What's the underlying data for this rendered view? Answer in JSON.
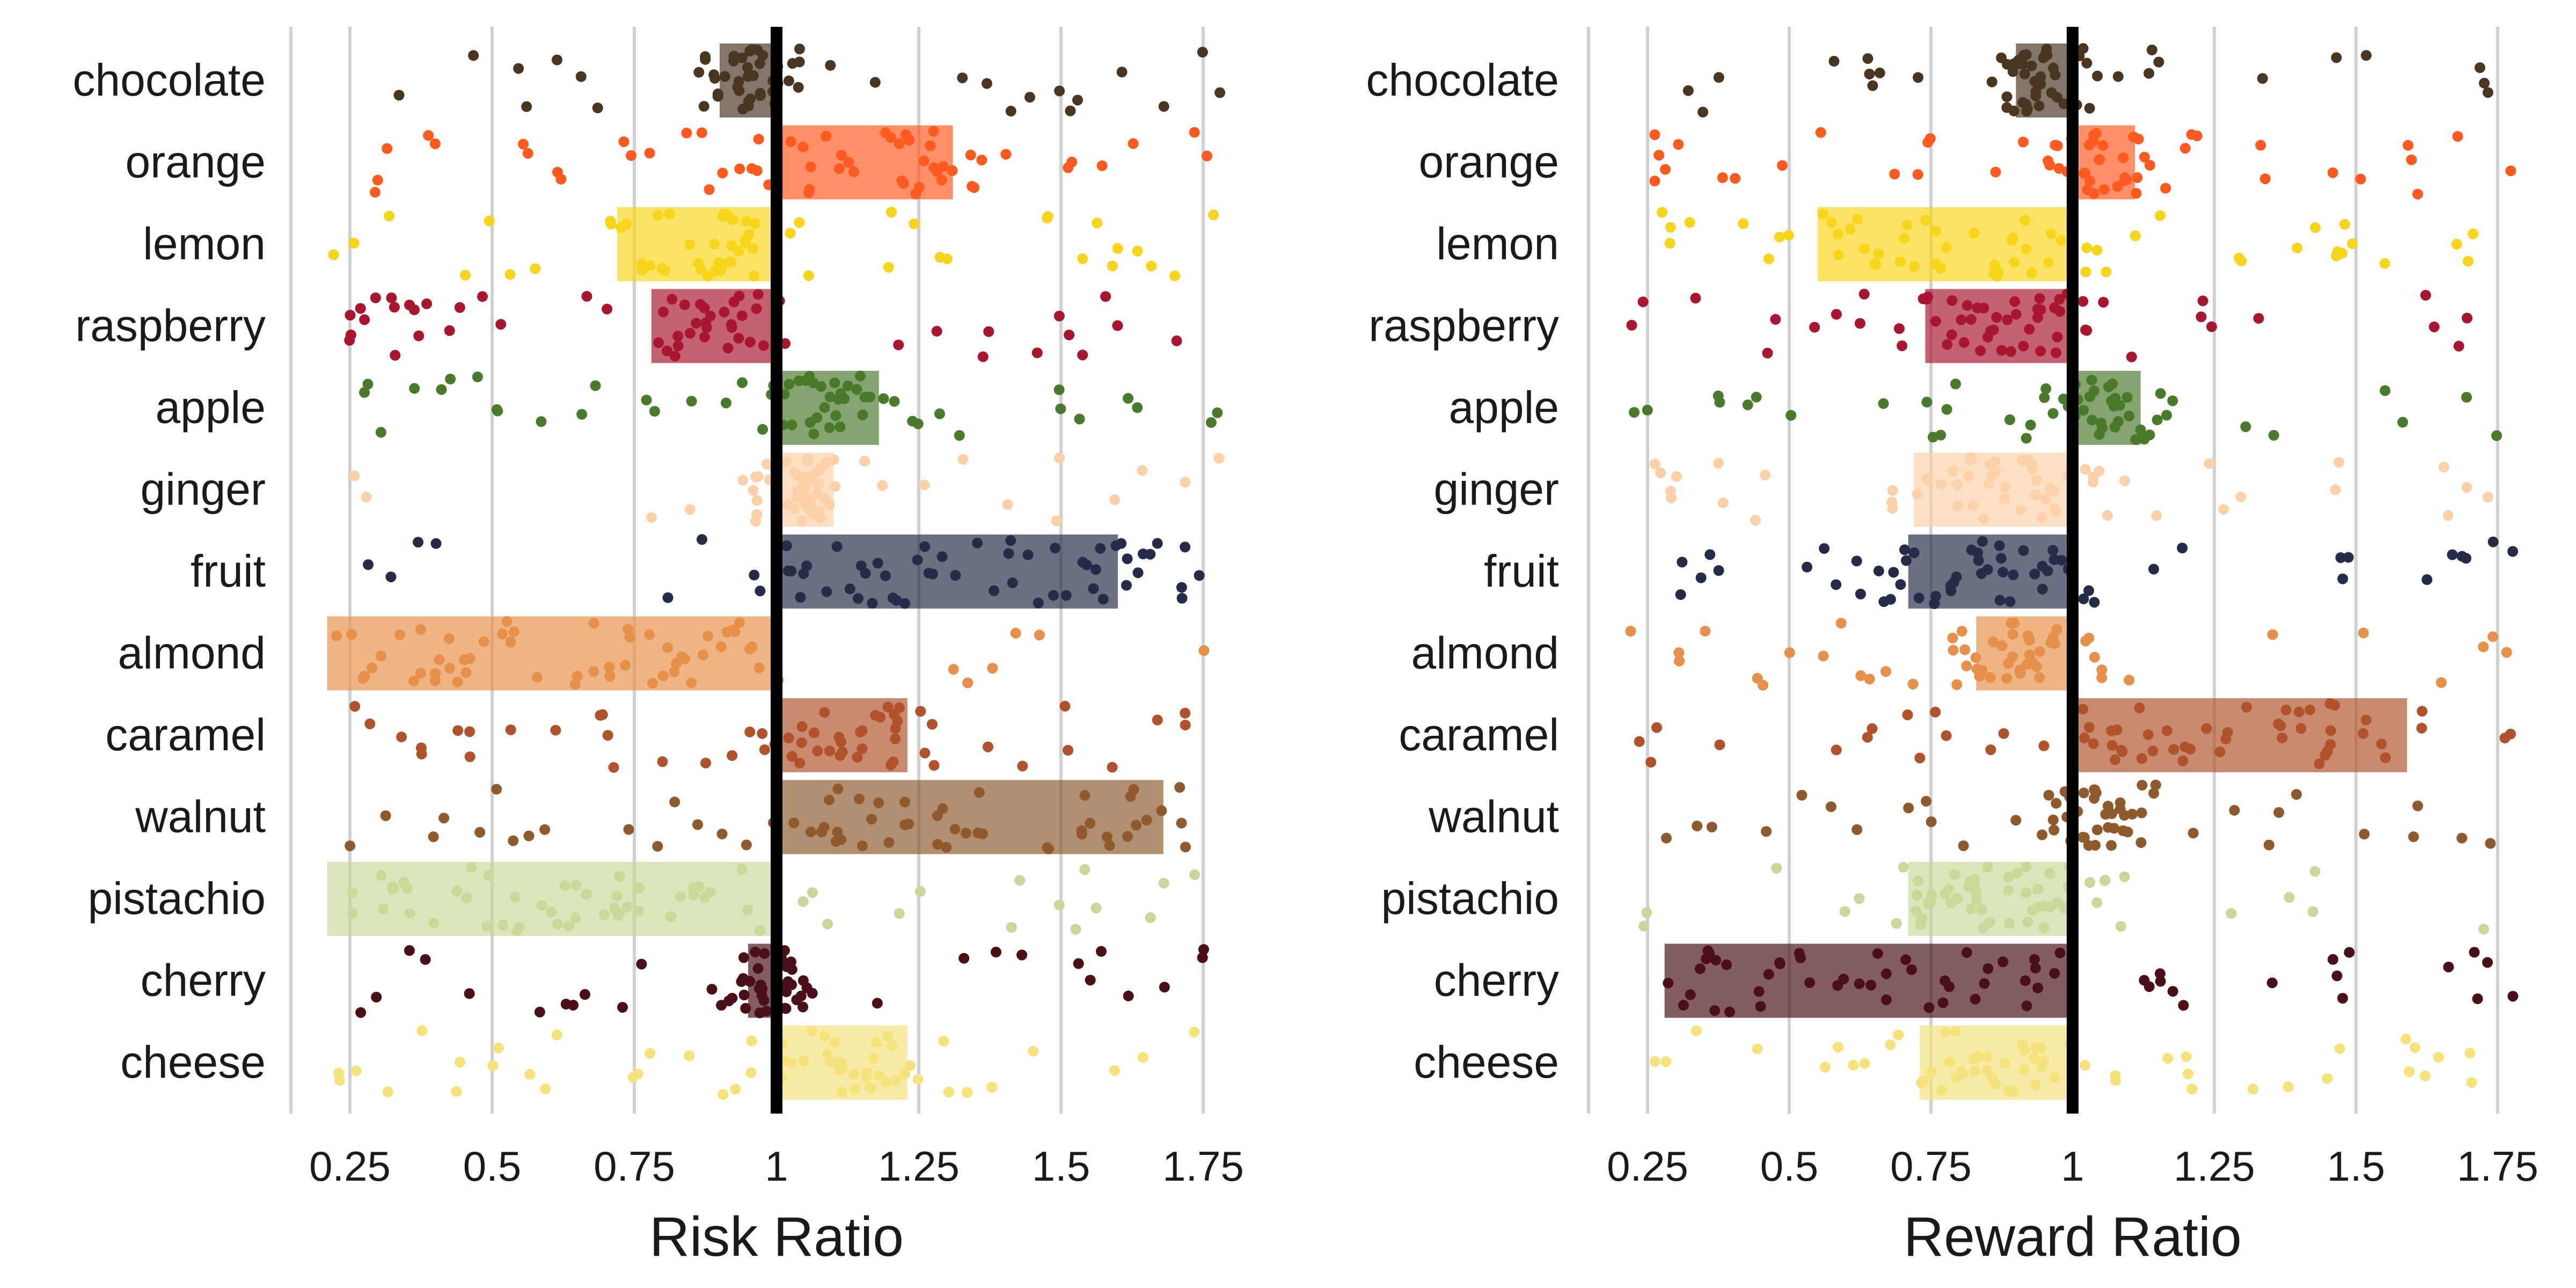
{
  "chart_data": [
    {
      "type": "bar",
      "xlabel": "Risk Ratio",
      "ylabel": "",
      "baseline": 1,
      "xlim": [
        0.0,
        1.8
      ],
      "x_ticks": [
        0.25,
        0.5,
        0.75,
        1,
        1.25,
        1.5,
        1.75
      ],
      "x_tick_labels": [
        "0.25",
        "0.5",
        "0.75",
        "1",
        "1.25",
        "1.5",
        "1.75"
      ],
      "grid": "vertical",
      "categories": [
        "chocolate",
        "orange",
        "lemon",
        "raspberry",
        "apple",
        "ginger",
        "fruit",
        "almond",
        "caramel",
        "walnut",
        "pistachio",
        "cherry",
        "cheese"
      ],
      "values": [
        0.9,
        1.31,
        0.72,
        0.78,
        1.18,
        1.1,
        1.6,
        0.21,
        1.23,
        1.68,
        0.21,
        0.95,
        1.23
      ],
      "points_per_category": 60,
      "jittered_points": true
    },
    {
      "type": "bar",
      "xlabel": "Reward Ratio",
      "ylabel": "",
      "baseline": 1,
      "xlim": [
        0.0,
        1.8
      ],
      "x_ticks": [
        0.25,
        0.5,
        0.75,
        1,
        1.25,
        1.5,
        1.75
      ],
      "x_tick_labels": [
        "0.25",
        "0.5",
        "0.75",
        "1",
        "1.25",
        "1.5",
        "1.75"
      ],
      "grid": "vertical",
      "categories": [
        "chocolate",
        "orange",
        "lemon",
        "raspberry",
        "apple",
        "ginger",
        "fruit",
        "almond",
        "caramel",
        "walnut",
        "pistachio",
        "cherry",
        "cheese"
      ],
      "values": [
        0.9,
        1.11,
        0.55,
        0.74,
        1.12,
        0.72,
        0.71,
        0.83,
        1.59,
        1.0,
        0.71,
        0.28,
        0.73
      ],
      "points_per_category": 60,
      "jittered_points": true
    }
  ],
  "colors": {
    "chocolate": "#4a3520",
    "orange": "#ff5a1f",
    "lemon": "#f7d51c",
    "raspberry": "#a8172f",
    "apple": "#4a7a2c",
    "ginger": "#fcd0a8",
    "fruit": "#252c48",
    "almond": "#e6904a",
    "caramel": "#b0532c",
    "walnut": "#8f5a2e",
    "pistachio": "#c8d89a",
    "cherry": "#4a1018",
    "cheese": "#f5e27a",
    "grid": "#d0d0d0",
    "baseline": "#000000"
  }
}
